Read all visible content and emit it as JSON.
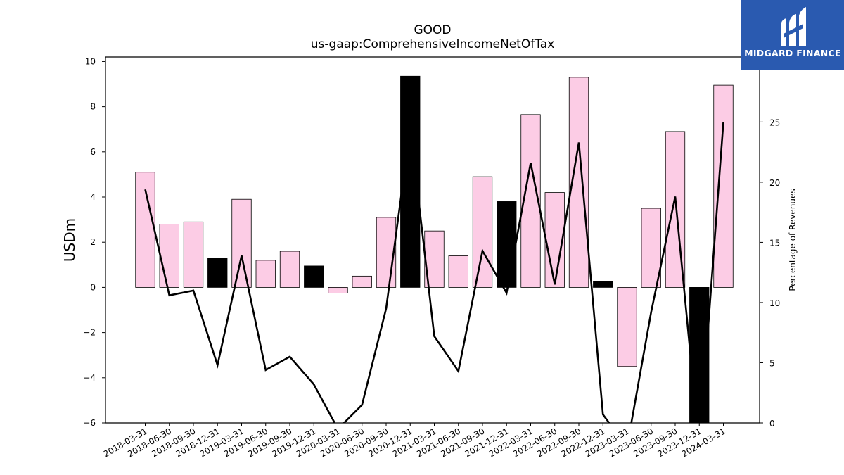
{
  "chart_data": {
    "type": "bar",
    "title": "GOOD",
    "subtitle": "us-gaap:ComprehensiveIncomeNetOfTax",
    "ylabel": "USDm",
    "y2label": "Percentage of Revenues",
    "ylim": [
      -6,
      10.2
    ],
    "y2lim": [
      0,
      30.4
    ],
    "yticks": [
      -6,
      -4,
      -2,
      0,
      2,
      4,
      6,
      8,
      10
    ],
    "y2ticks": [
      0,
      5,
      10,
      15,
      20,
      25
    ],
    "categories": [
      "2018-03-31",
      "2018-06-30",
      "2018-09-30",
      "2018-12-31",
      "2019-03-31",
      "2019-06-30",
      "2019-09-30",
      "2019-12-31",
      "2020-03-31",
      "2020-06-30",
      "2020-09-30",
      "2020-12-31",
      "2021-03-31",
      "2021-06-30",
      "2021-09-30",
      "2021-12-31",
      "2022-03-31",
      "2022-06-30",
      "2022-09-30",
      "2022-12-31",
      "2023-03-31",
      "2023-06-30",
      "2023-09-30",
      "2023-12-31",
      "2024-03-31"
    ],
    "series": [
      {
        "values": [
          5.1,
          2.8,
          2.9,
          1.3,
          3.9,
          1.2,
          1.6,
          0.95,
          -0.25,
          0.5,
          3.1,
          9.35,
          2.5,
          1.4,
          4.9,
          3.8,
          7.65,
          4.2,
          9.3,
          0.28,
          -3.5,
          3.5,
          6.9,
          -6.0,
          8.95
        ],
        "highlight": [
          false,
          false,
          false,
          true,
          false,
          false,
          false,
          true,
          false,
          false,
          false,
          true,
          false,
          false,
          false,
          true,
          false,
          false,
          false,
          true,
          false,
          false,
          false,
          true,
          false
        ]
      },
      {
        "axis": "right",
        "type": "line",
        "values": [
          19.4,
          10.6,
          11.0,
          4.8,
          13.9,
          4.4,
          5.5,
          3.2,
          -0.5,
          1.5,
          9.5,
          24.5,
          7.2,
          4.3,
          14.3,
          10.8,
          21.6,
          11.5,
          23.3,
          0.7,
          -2.0,
          9.2,
          18.8,
          -2.0,
          25.0
        ]
      }
    ],
    "colors": {
      "bar": "#fccce5",
      "bar_highlight": "#000000",
      "line": "#000000"
    },
    "grid": false
  },
  "logo": {
    "text": "MIDGARD FINANCE",
    "background": "#2a5ab0"
  }
}
